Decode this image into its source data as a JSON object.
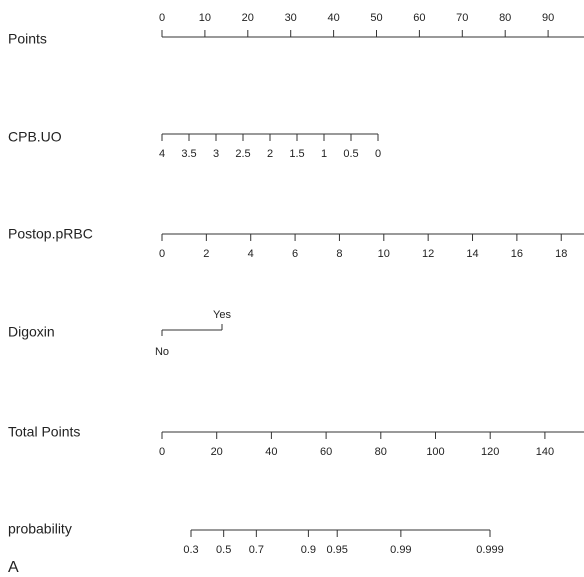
{
  "chart_data": {
    "type": "nomogram",
    "axes": [
      {
        "label": "Points",
        "xlim": [
          0,
          100
        ],
        "xticks": [
          0,
          10,
          20,
          30,
          40,
          50,
          60,
          70,
          80,
          90
        ],
        "tick_side": "top"
      },
      {
        "label": "CPB.UO",
        "xlim": [
          4,
          0
        ],
        "xticks": [
          4,
          3.5,
          3,
          2.5,
          2,
          1.5,
          1,
          0.5,
          0
        ],
        "tick_side": "bottom"
      },
      {
        "label": "Postop.pRBC",
        "xlim": [
          0,
          20
        ],
        "xticks": [
          0,
          2,
          4,
          6,
          8,
          10,
          12,
          14,
          16,
          18
        ],
        "tick_side": "bottom"
      },
      {
        "label": "Digoxin",
        "categories": [
          "No",
          "Yes"
        ]
      },
      {
        "label": "Total Points",
        "xlim": [
          0,
          160
        ],
        "xticks": [
          0,
          20,
          40,
          60,
          80,
          100,
          120,
          140
        ],
        "tick_side": "bottom"
      },
      {
        "label": "probability",
        "scale": "logit",
        "xlim": [
          0.3,
          0.999
        ],
        "xticks": [
          0.3,
          0.5,
          0.7,
          0.9,
          0.95,
          0.99,
          0.999
        ],
        "tick_side": "bottom"
      }
    ],
    "panel_label": "A"
  }
}
